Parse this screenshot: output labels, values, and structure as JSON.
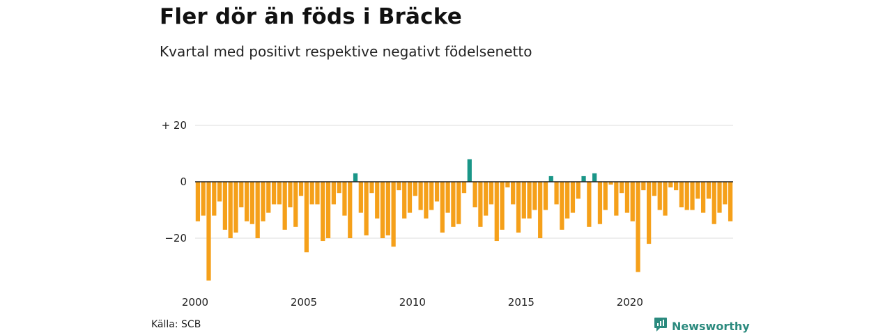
{
  "header": {
    "title": "Fler dör än föds i Bräcke",
    "subtitle": "Kvartal med positivt respektive negativt födelsenetto"
  },
  "footer": {
    "source": "Källa: SCB",
    "brand": "Newsworthy",
    "brand_icon": "newsworthy-logo-icon"
  },
  "colors": {
    "negative": "#f5a01a",
    "positive": "#1a9688",
    "grid": "#dddddd",
    "zero_line": "#222222",
    "brand": "#2b8a7e"
  },
  "chart_data": {
    "type": "bar",
    "title": "Fler dör än föds i Bräcke",
    "subtitle": "Kvartal med positivt respektive negativt födelsenetto",
    "ylabel": "",
    "xlabel": "",
    "ylim": [
      -36,
      20
    ],
    "y_ticks": [
      {
        "value": 20,
        "label": "+ 20"
      },
      {
        "value": 0,
        "label": "0"
      },
      {
        "value": -20,
        "label": "−20"
      }
    ],
    "x_ticks": [
      {
        "year": 2000,
        "label": "2000"
      },
      {
        "year": 2005,
        "label": "2005"
      },
      {
        "year": 2010,
        "label": "2010"
      },
      {
        "year": 2015,
        "label": "2015"
      },
      {
        "year": 2020,
        "label": "2020"
      }
    ],
    "start_year": 2000,
    "grid": true,
    "legend": "none",
    "values": [
      -14,
      -12,
      -35,
      -12,
      -7,
      -17,
      -20,
      -18,
      -9,
      -14,
      -15,
      -20,
      -14,
      -11,
      -8,
      -8,
      -17,
      -9,
      -16,
      -5,
      -25,
      -8,
      -8,
      -21,
      -20,
      -8,
      -4,
      -12,
      -20,
      3,
      -11,
      -19,
      -4,
      -13,
      -20,
      -19,
      -23,
      -3,
      -13,
      -11,
      -5,
      -10,
      -13,
      -10,
      -7,
      -18,
      -11,
      -16,
      -15,
      -4,
      8,
      -9,
      -16,
      -12,
      -8,
      -21,
      -17,
      -2,
      -8,
      -18,
      -13,
      -13,
      -10,
      -20,
      -10,
      2,
      -8,
      -17,
      -13,
      -11,
      -6,
      2,
      -16,
      3,
      -15,
      -10,
      -1,
      -12,
      -4,
      -11,
      -14,
      -32,
      -3,
      -22,
      -5,
      -10,
      -12,
      -2,
      -3,
      -9,
      -10,
      -10,
      -6,
      -11,
      -6,
      -15,
      -11,
      -8,
      -14
    ]
  }
}
